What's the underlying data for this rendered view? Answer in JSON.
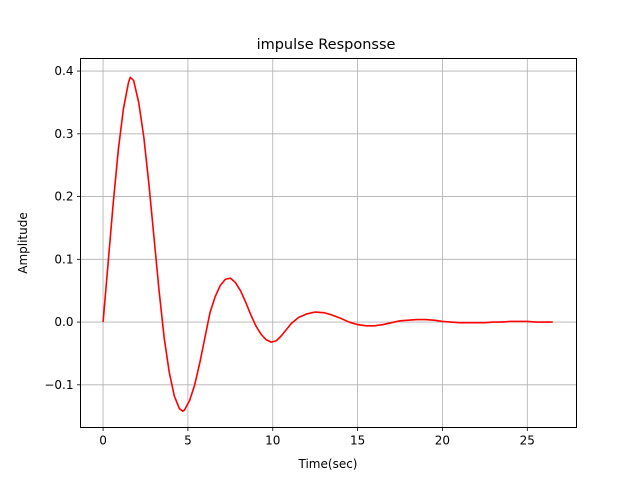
{
  "chart_data": {
    "type": "line",
    "title": "impulse Responsse",
    "xlabel": "Time(sec)",
    "ylabel": "Amplitude",
    "xlim": [
      -1.33,
      27.9
    ],
    "ylim": [
      -0.168,
      0.42
    ],
    "grid": true,
    "xticks": [
      0,
      5,
      10,
      15,
      20,
      25
    ],
    "xtick_labels": [
      "0",
      "5",
      "10",
      "15",
      "20",
      "25"
    ],
    "yticks": [
      -0.1,
      0.0,
      0.1,
      0.2,
      0.3,
      0.4
    ],
    "ytick_labels": [
      "−0.1",
      "0.0",
      "0.1",
      "0.2",
      "0.3",
      "0.4"
    ],
    "series": [
      {
        "color": "#ff0000",
        "x": [
          0,
          0.3,
          0.6,
          0.9,
          1.2,
          1.5,
          1.6,
          1.8,
          2.1,
          2.4,
          2.7,
          3.0,
          3.3,
          3.6,
          3.9,
          4.2,
          4.5,
          4.7,
          4.8,
          5.1,
          5.4,
          5.7,
          6.0,
          6.3,
          6.6,
          6.9,
          7.2,
          7.5,
          7.8,
          8.1,
          8.4,
          8.7,
          9.0,
          9.3,
          9.6,
          9.9,
          10.2,
          10.5,
          10.8,
          11.1,
          11.5,
          12.0,
          12.5,
          13.0,
          13.4,
          14.0,
          14.5,
          15.0,
          15.5,
          16.0,
          16.5,
          17.0,
          17.5,
          18.0,
          18.5,
          19.0,
          19.5,
          20.0,
          20.5,
          21.0,
          21.5,
          22.0,
          22.5,
          23.0,
          23.5,
          24.0,
          24.5,
          25.0,
          25.5,
          26.0,
          26.5
        ],
        "y": [
          0.0,
          0.095,
          0.19,
          0.275,
          0.34,
          0.382,
          0.39,
          0.385,
          0.35,
          0.295,
          0.22,
          0.135,
          0.05,
          -0.025,
          -0.08,
          -0.118,
          -0.138,
          -0.142,
          -0.14,
          -0.125,
          -0.1,
          -0.065,
          -0.025,
          0.015,
          0.04,
          0.058,
          0.068,
          0.07,
          0.063,
          0.05,
          0.032,
          0.012,
          -0.006,
          -0.019,
          -0.028,
          -0.032,
          -0.03,
          -0.022,
          -0.012,
          -0.002,
          0.007,
          0.013,
          0.016,
          0.015,
          0.012,
          0.006,
          0.0,
          -0.004,
          -0.006,
          -0.006,
          -0.004,
          -0.001,
          0.002,
          0.003,
          0.004,
          0.004,
          0.003,
          0.001,
          0.0,
          -0.001,
          -0.001,
          -0.001,
          -0.001,
          0.0,
          0.0,
          0.001,
          0.001,
          0.001,
          0.0,
          0.0,
          0.0
        ]
      }
    ]
  }
}
